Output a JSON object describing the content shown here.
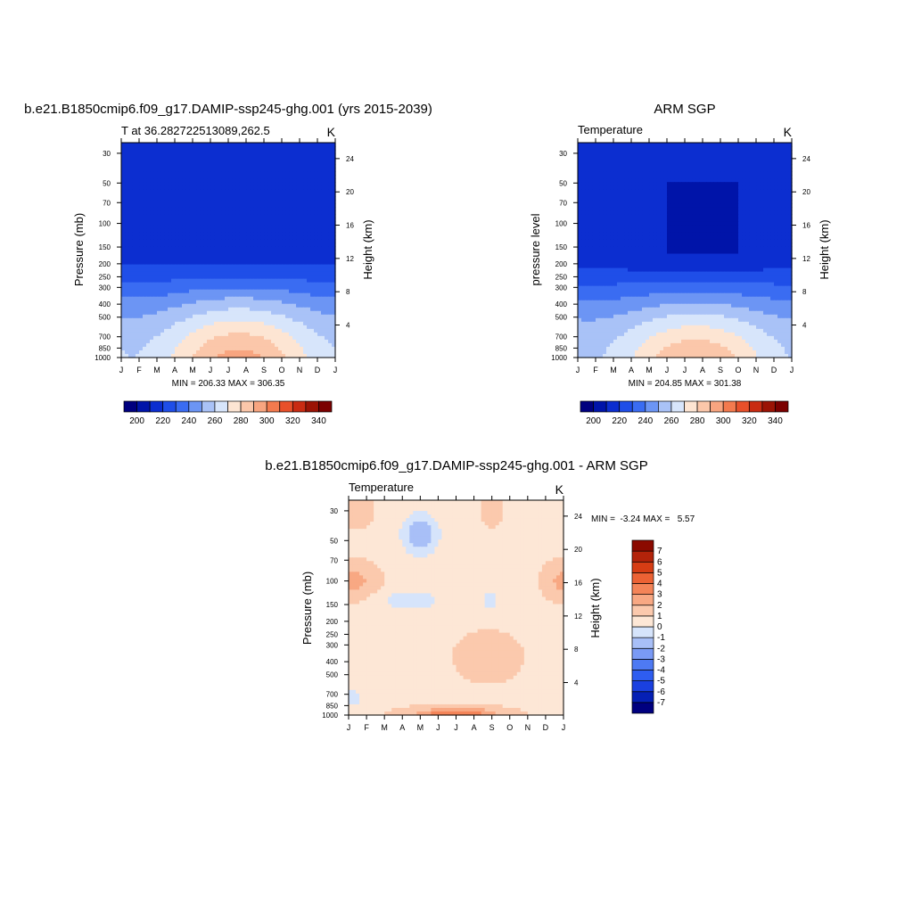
{
  "chart_data": [
    {
      "id": "model",
      "type": "heatmap",
      "title": "b.e21.B1850cmip6.f09_g17.DAMIP-ssp245-ghg.001 (yrs 2015-2039)",
      "left_string": "T at 36.282722513089,262.5",
      "right_string": "K",
      "ylabel": "Pressure (mb)",
      "ylabel_right": "Height (km)",
      "x_ticks": [
        "J",
        "F",
        "M",
        "A",
        "M",
        "J",
        "J",
        "A",
        "S",
        "O",
        "N",
        "D",
        "J"
      ],
      "pressure_ticks": [
        30,
        50,
        70,
        100,
        150,
        200,
        250,
        300,
        400,
        500,
        700,
        850,
        1000
      ],
      "height_ticks": [
        4,
        8,
        12,
        16,
        20,
        24
      ],
      "ylim_pressure": [
        1000,
        25
      ],
      "stats": "MIN = 206.33 MAX = 306.35",
      "levels": [
        200,
        210,
        220,
        230,
        240,
        250,
        260,
        270,
        280,
        290,
        300,
        310,
        320,
        330,
        340
      ],
      "levels_labels": [
        200,
        220,
        240,
        260,
        280,
        300,
        320,
        340
      ],
      "min": 206.33,
      "max": 306.35
    },
    {
      "id": "obs",
      "type": "heatmap",
      "title": "ARM SGP",
      "left_string": "Temperature",
      "right_string": "K",
      "ylabel": "pressure level",
      "ylabel_right": "Height (km)",
      "x_ticks": [
        "J",
        "F",
        "M",
        "A",
        "M",
        "J",
        "J",
        "A",
        "S",
        "O",
        "N",
        "D",
        "J"
      ],
      "pressure_ticks": [
        30,
        50,
        70,
        100,
        150,
        200,
        250,
        300,
        400,
        500,
        700,
        850,
        1000
      ],
      "height_ticks": [
        4,
        8,
        12,
        16,
        20,
        24
      ],
      "ylim_pressure": [
        1000,
        25
      ],
      "stats": "MIN = 204.85 MAX = 301.38",
      "levels": [
        200,
        210,
        220,
        230,
        240,
        250,
        260,
        270,
        280,
        290,
        300,
        310,
        320,
        330,
        340
      ],
      "levels_labels": [
        200,
        220,
        240,
        260,
        280,
        300,
        320,
        340
      ],
      "min": 204.85,
      "max": 301.38
    },
    {
      "id": "diff",
      "type": "heatmap",
      "title": "b.e21.B1850cmip6.f09_g17.DAMIP-ssp245-ghg.001 - ARM SGP",
      "left_string": "Temperature",
      "right_string": "K",
      "ylabel": "Pressure (mb)",
      "ylabel_right": "Height (km)",
      "x_ticks": [
        "J",
        "F",
        "M",
        "A",
        "M",
        "J",
        "J",
        "A",
        "S",
        "O",
        "N",
        "D",
        "J"
      ],
      "pressure_ticks": [
        30,
        50,
        70,
        100,
        150,
        200,
        250,
        300,
        400,
        500,
        700,
        850,
        1000
      ],
      "height_ticks": [
        4,
        8,
        12,
        16,
        20,
        24
      ],
      "ylim_pressure": [
        1000,
        25
      ],
      "stats": "MIN =  -3.24 MAX =   5.57",
      "levels": [
        -7,
        -6,
        -5,
        -4,
        -3,
        -2,
        -1,
        0,
        1,
        2,
        3,
        4,
        5,
        6,
        7
      ],
      "levels_labels": [
        7,
        6,
        5,
        4,
        3,
        2,
        1,
        0,
        -1,
        -2,
        -3,
        -4,
        -5,
        -6,
        -7
      ],
      "min": -3.24,
      "max": 5.57
    }
  ],
  "colors": {
    "palette": [
      "#00007f",
      "#0014a9",
      "#0c2ed0",
      "#1f4ee8",
      "#3a6cf2",
      "#6c95f4",
      "#a9c2f7",
      "#d7e5fb",
      "#fde5d3",
      "#fbc7aa",
      "#f8a580",
      "#f37a4e",
      "#e8502a",
      "#c92b12",
      "#9b1305",
      "#7b0000"
    ],
    "diff_palette": [
      "#00007f",
      "#0520b5",
      "#1a40e0",
      "#2e5df0",
      "#4e7af3",
      "#7a9af5",
      "#a8bff7",
      "#d6e4fb",
      "#fde7d6",
      "#fbc9ad",
      "#f8a883",
      "#f48458",
      "#ec6234",
      "#d63d14",
      "#b3230a",
      "#8b0a00"
    ]
  }
}
